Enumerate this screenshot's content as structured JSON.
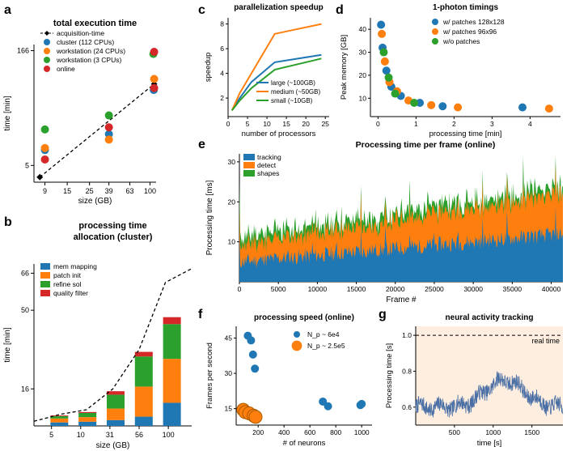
{
  "global": {
    "colors": {
      "blue": "#1f77b4",
      "orange": "#ff7f0e",
      "green": "#2ca02c",
      "red": "#d62728",
      "black": "#000000",
      "grid": "#cccccc",
      "peach_bg": "#fdeee0",
      "text": "#000000"
    },
    "fonts": {
      "label_size": 10,
      "tick_size": 9,
      "title_size": 11
    }
  },
  "a": {
    "letter": "a",
    "title": "total execution time",
    "xlabel": "size (GB)",
    "ylabel": "time [min]",
    "xticks": [
      9,
      15,
      25,
      39,
      63,
      100
    ],
    "yticks": [
      5,
      166
    ],
    "xlim": [
      7,
      115
    ],
    "ylim": [
      3,
      200
    ],
    "xscale": "log",
    "yscale": "log",
    "legend": [
      {
        "name": "acquisition-time",
        "kind": "line",
        "color": "#000000",
        "dash": "4 3",
        "marker": "diamond"
      },
      {
        "name": "cluster (112 CPUs)",
        "kind": "marker",
        "color": "#1f77b4"
      },
      {
        "name": "workstation (24 CPUs)",
        "kind": "marker",
        "color": "#ff7f0e"
      },
      {
        "name": "workstation (3 CPUs)",
        "kind": "marker",
        "color": "#2ca02c"
      },
      {
        "name": "online",
        "kind": "marker",
        "color": "#d62728"
      }
    ],
    "series": {
      "acquisition": [
        [
          8,
          3.5
        ],
        [
          110,
          60
        ]
      ],
      "cluster": [
        [
          9,
          8
        ],
        [
          39,
          13
        ],
        [
          109,
          50
        ]
      ],
      "work24": [
        [
          9,
          8.5
        ],
        [
          39,
          11
        ],
        [
          110,
          70
        ]
      ],
      "work3": [
        [
          9,
          15
        ],
        [
          39,
          23
        ],
        [
          108,
          150
        ]
      ],
      "online": [
        [
          9,
          6
        ],
        [
          39,
          16
        ],
        [
          110,
          53
        ]
      ],
      "extra_red": [
        [
          110,
          160
        ]
      ],
      "extra_green_small": [
        [
          39,
          24
        ]
      ]
    },
    "marker_r": 5
  },
  "b": {
    "letter": "b",
    "title": "processing time\nallocation (cluster)",
    "xlabel": "size (GB)",
    "ylabel": "time [min]",
    "xticks": [
      5,
      10,
      31,
      56,
      100
    ],
    "yticks": [
      16,
      50,
      66
    ],
    "xlim": [
      2,
      115
    ],
    "ylim": [
      0,
      70
    ],
    "bar_width": 0.8,
    "legend": [
      {
        "name": "mem mapping",
        "color": "#1f77b4"
      },
      {
        "name": "patch init",
        "color": "#ff7f0e"
      },
      {
        "name": "refine sol",
        "color": "#2ca02c"
      },
      {
        "name": "quality filter",
        "color": "#d62728"
      }
    ],
    "stacks": [
      {
        "x": 9,
        "seg": [
          1.5,
          1.7,
          1.0,
          0.3
        ]
      },
      {
        "x": 10,
        "seg": [
          1.8,
          2.0,
          1.8,
          0.4
        ]
      },
      {
        "x": 31,
        "seg": [
          2.5,
          5.0,
          6.0,
          1.5
        ]
      },
      {
        "x": 56,
        "seg": [
          4.0,
          13.0,
          13.0,
          2.0
        ]
      },
      {
        "x": 100,
        "seg": [
          10.0,
          19.0,
          15.0,
          3.0
        ]
      }
    ],
    "dashed_line": [
      [
        3,
        2
      ],
      [
        9,
        5
      ],
      [
        10,
        7
      ],
      [
        31,
        16
      ],
      [
        56,
        33
      ],
      [
        100,
        62
      ],
      [
        110,
        68
      ]
    ]
  },
  "c": {
    "letter": "c",
    "title": "parallelization speedup",
    "xlabel": "number of processors",
    "ylabel": "speedup",
    "xticks": [
      0,
      5,
      10,
      15,
      20,
      25
    ],
    "yticks": [
      2,
      4,
      6,
      8
    ],
    "xlim": [
      0,
      26
    ],
    "ylim": [
      0.5,
      8.5
    ],
    "legend": [
      {
        "name": "large  (~100GB)",
        "color": "#1f77b4"
      },
      {
        "name": "medium  (~50GB)",
        "color": "#ff7f0e"
      },
      {
        "name": "small  (~10GB)",
        "color": "#2ca02c"
      }
    ],
    "series": {
      "large": [
        [
          1,
          1
        ],
        [
          3,
          2.0
        ],
        [
          6,
          3.3
        ],
        [
          12,
          4.9
        ],
        [
          24,
          5.5
        ]
      ],
      "medium": [
        [
          1,
          1
        ],
        [
          3,
          2.4
        ],
        [
          6,
          4.0
        ],
        [
          12,
          7.2
        ],
        [
          24,
          8.0
        ]
      ],
      "small": [
        [
          1,
          1
        ],
        [
          3,
          1.8
        ],
        [
          6,
          2.8
        ],
        [
          12,
          4.3
        ],
        [
          24,
          5.2
        ]
      ]
    },
    "line_width": 2
  },
  "d": {
    "letter": "d",
    "title": "1-photon timings",
    "xlabel": "processing time [min]",
    "ylabel": "Peak memory [GB]",
    "xticks": [
      0,
      1,
      2,
      3,
      4
    ],
    "yticks": [
      10,
      20,
      30,
      40
    ],
    "xlim": [
      -0.2,
      4.8
    ],
    "ylim": [
      2,
      45
    ],
    "legend": [
      {
        "name": "w/ patches 128x128",
        "color": "#1f77b4"
      },
      {
        "name": "w/ patches  96x96",
        "color": "#ff7f0e"
      },
      {
        "name": "w/o patches",
        "color": "#2ca02c"
      }
    ],
    "points": {
      "p128": [
        [
          0.08,
          42
        ],
        [
          0.12,
          32
        ],
        [
          0.22,
          22
        ],
        [
          0.35,
          15
        ],
        [
          0.6,
          11
        ],
        [
          1.1,
          8
        ],
        [
          1.7,
          6.5
        ],
        [
          3.8,
          6
        ]
      ],
      "p96": [
        [
          0.1,
          38
        ],
        [
          0.18,
          26
        ],
        [
          0.3,
          17
        ],
        [
          0.5,
          13
        ],
        [
          0.8,
          9
        ],
        [
          1.4,
          7
        ],
        [
          2.1,
          6
        ],
        [
          4.5,
          5.5
        ]
      ],
      "nop": [
        [
          0.15,
          30
        ],
        [
          0.28,
          19
        ],
        [
          0.45,
          12
        ],
        [
          0.95,
          8
        ]
      ]
    },
    "marker_r": 5
  },
  "e": {
    "letter": "e",
    "title": "Processing time per frame (online)",
    "xlabel": "Frame #",
    "ylabel": "Processing time [ms]",
    "xticks": [
      0,
      5000,
      10000,
      15000,
      20000,
      25000,
      30000,
      35000,
      40000
    ],
    "yticks": [
      10,
      20,
      30
    ],
    "xlim": [
      0,
      41500
    ],
    "ylim": [
      0,
      32
    ],
    "legend": [
      {
        "name": "tracking",
        "color": "#1f77b4"
      },
      {
        "name": "detect",
        "color": "#ff7f0e"
      },
      {
        "name": "shapes",
        "color": "#2ca02c"
      }
    ]
  },
  "f": {
    "letter": "f",
    "title": "processing speed (online)",
    "xlabel": "# of neurons",
    "ylabel": "Frames per second",
    "xticks": [
      200,
      400,
      600,
      800,
      1000
    ],
    "yticks": [
      15,
      30,
      45
    ],
    "xlim": [
      30,
      1080
    ],
    "ylim": [
      8,
      50
    ],
    "legend": [
      {
        "name": "N_p ~ 6e4",
        "color": "#1f77b4",
        "r": 5
      },
      {
        "name": "N_p ~ 2.5e5",
        "color": "#ff7f0e",
        "r": 8
      }
    ],
    "points": {
      "small": [
        [
          120,
          46
        ],
        [
          145,
          44
        ],
        [
          160,
          38
        ],
        [
          175,
          32
        ],
        [
          700,
          18
        ],
        [
          740,
          16
        ],
        [
          990,
          16.5
        ],
        [
          1000,
          17
        ]
      ],
      "large": [
        [
          85,
          14.5
        ],
        [
          100,
          13.5
        ],
        [
          130,
          13
        ],
        [
          165,
          12
        ],
        [
          180,
          11.5
        ]
      ]
    }
  },
  "g": {
    "letter": "g",
    "title": "neural activity tracking",
    "xlabel": "time [s]",
    "ylabel": "Processing time [s]",
    "xticks": [
      500,
      1000,
      1500
    ],
    "yticks": [
      0.6,
      0.8,
      1.0
    ],
    "xlim": [
      0,
      1900
    ],
    "ylim": [
      0.5,
      1.05
    ],
    "bg_color": "#fdeee0",
    "real_time_label": "real time",
    "real_time_y": 1.0,
    "line_color": "#4a6fa5"
  }
}
